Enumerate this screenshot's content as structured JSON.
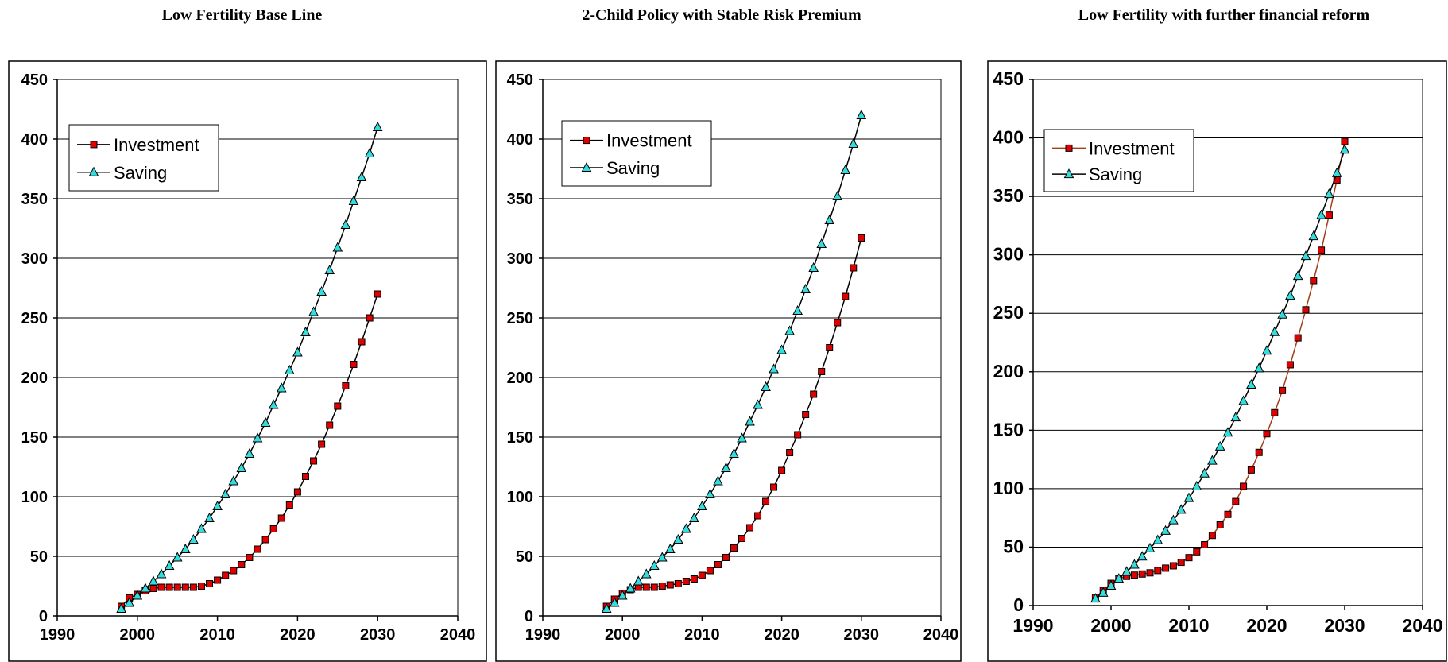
{
  "chart_data": [
    {
      "type": "line",
      "title": "Low Fertility Base Line",
      "xlim": [
        1990,
        2040
      ],
      "ylim": [
        0,
        450
      ],
      "xticks": [
        1990,
        2000,
        2010,
        2020,
        2030,
        2040
      ],
      "yticks": [
        0,
        50,
        100,
        150,
        200,
        250,
        300,
        350,
        400,
        450
      ],
      "grid": "horizontal",
      "legend": "top-left",
      "x": [
        1998,
        1999,
        2000,
        2001,
        2002,
        2003,
        2004,
        2005,
        2006,
        2007,
        2008,
        2009,
        2010,
        2011,
        2012,
        2013,
        2014,
        2015,
        2016,
        2017,
        2018,
        2019,
        2020,
        2021,
        2022,
        2023,
        2024,
        2025,
        2026,
        2027,
        2028,
        2029,
        2030
      ],
      "series": [
        {
          "name": "Investment",
          "color": "#000000",
          "marker": "square",
          "marker_color": "#e00000",
          "values": [
            8,
            15,
            18,
            21,
            23,
            24,
            24,
            24,
            24,
            24,
            25,
            27,
            30,
            34,
            38,
            43,
            49,
            56,
            64,
            73,
            82,
            93,
            104,
            117,
            130,
            144,
            160,
            176,
            193,
            211,
            230,
            250,
            270
          ]
        },
        {
          "name": "Saving",
          "color": "#000000",
          "marker": "triangle",
          "marker_color": "#33dddd",
          "values": [
            6,
            11,
            17,
            23,
            29,
            35,
            42,
            49,
            56,
            64,
            73,
            82,
            92,
            102,
            113,
            124,
            136,
            149,
            162,
            177,
            191,
            206,
            221,
            238,
            255,
            272,
            290,
            309,
            328,
            348,
            368,
            388,
            410
          ]
        }
      ]
    },
    {
      "type": "line",
      "title": "2-Child Policy with Stable Risk Premium",
      "xlim": [
        1990,
        2040
      ],
      "ylim": [
        0,
        450
      ],
      "xticks": [
        1990,
        2000,
        2010,
        2020,
        2030,
        2040
      ],
      "yticks": [
        0,
        50,
        100,
        150,
        200,
        250,
        300,
        350,
        400,
        450
      ],
      "grid": "horizontal",
      "legend": "top-left",
      "x": [
        1998,
        1999,
        2000,
        2001,
        2002,
        2003,
        2004,
        2005,
        2006,
        2007,
        2008,
        2009,
        2010,
        2011,
        2012,
        2013,
        2014,
        2015,
        2016,
        2017,
        2018,
        2019,
        2020,
        2021,
        2022,
        2023,
        2024,
        2025,
        2026,
        2027,
        2028,
        2029,
        2030
      ],
      "series": [
        {
          "name": "Investment",
          "color": "#000000",
          "marker": "square",
          "marker_color": "#e00000",
          "values": [
            8,
            14,
            19,
            22,
            24,
            24,
            24,
            25,
            26,
            27,
            29,
            31,
            34,
            38,
            43,
            49,
            57,
            65,
            74,
            84,
            96,
            108,
            122,
            137,
            152,
            169,
            186,
            205,
            225,
            246,
            268,
            292,
            317
          ]
        },
        {
          "name": "Saving",
          "color": "#000000",
          "marker": "triangle",
          "marker_color": "#33dddd",
          "values": [
            6,
            11,
            17,
            23,
            29,
            35,
            42,
            49,
            56,
            64,
            73,
            82,
            92,
            102,
            113,
            124,
            136,
            149,
            163,
            177,
            192,
            207,
            223,
            239,
            256,
            274,
            292,
            312,
            332,
            352,
            374,
            396,
            420
          ]
        }
      ]
    },
    {
      "type": "line",
      "title": "Low Fertility with further financial reform",
      "xlim": [
        1990,
        2040
      ],
      "ylim": [
        0,
        450
      ],
      "xticks": [
        1990,
        2000,
        2010,
        2020,
        2030,
        2040
      ],
      "yticks": [
        0,
        50,
        100,
        150,
        200,
        250,
        300,
        350,
        400,
        450
      ],
      "grid": "horizontal",
      "legend": "top-left",
      "x": [
        1998,
        1999,
        2000,
        2001,
        2002,
        2003,
        2004,
        2005,
        2006,
        2007,
        2008,
        2009,
        2010,
        2011,
        2012,
        2013,
        2014,
        2015,
        2016,
        2017,
        2018,
        2019,
        2020,
        2021,
        2022,
        2023,
        2024,
        2025,
        2026,
        2027,
        2028,
        2029,
        2030
      ],
      "series": [
        {
          "name": "Investment",
          "color": "#a0401a",
          "marker": "square",
          "marker_color": "#e00000",
          "values": [
            7,
            13,
            19,
            23,
            25,
            26,
            27,
            28,
            30,
            32,
            34,
            37,
            41,
            46,
            52,
            60,
            69,
            78,
            89,
            102,
            116,
            131,
            147,
            165,
            184,
            206,
            229,
            253,
            278,
            304,
            334,
            364,
            397
          ]
        },
        {
          "name": "Saving",
          "color": "#000000",
          "marker": "triangle",
          "marker_color": "#33dddd",
          "values": [
            6,
            11,
            17,
            23,
            29,
            35,
            42,
            49,
            56,
            64,
            73,
            82,
            92,
            102,
            113,
            124,
            136,
            148,
            161,
            175,
            189,
            203,
            218,
            234,
            249,
            265,
            282,
            299,
            316,
            334,
            352,
            370,
            390
          ]
        }
      ]
    }
  ]
}
